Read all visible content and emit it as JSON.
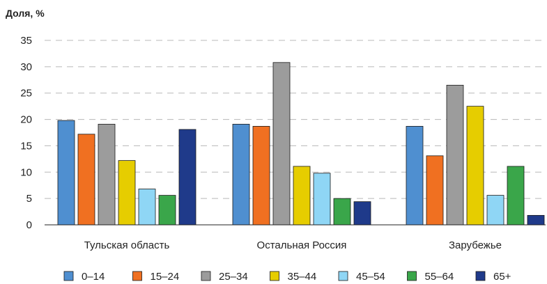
{
  "chart_data": {
    "type": "bar",
    "ylabel": "Доля, %",
    "xlabel": "",
    "ylim": [
      0,
      35
    ],
    "yticks": [
      0,
      5,
      10,
      15,
      20,
      25,
      30,
      35
    ],
    "grid": "dashed horizontal",
    "legend_position": "bottom",
    "categories": [
      "Тульская область",
      "Остальная Россия",
      "Зарубежье"
    ],
    "series": [
      {
        "name": "0–14",
        "color": "#4f8fd0",
        "values": [
          19.8,
          19.1,
          18.7
        ]
      },
      {
        "name": "15–24",
        "color": "#f07021",
        "values": [
          17.2,
          18.7,
          13.1
        ]
      },
      {
        "name": "25–34",
        "color": "#9c9c9c",
        "values": [
          19.1,
          30.8,
          26.5
        ]
      },
      {
        "name": "35–44",
        "color": "#e6cd00",
        "values": [
          12.2,
          11.1,
          22.5
        ]
      },
      {
        "name": "45–54",
        "color": "#8fd6f5",
        "values": [
          6.8,
          9.8,
          5.6
        ]
      },
      {
        "name": "55–64",
        "color": "#3aa64a",
        "values": [
          5.6,
          5.0,
          11.1
        ]
      },
      {
        "name": "65+",
        "color": "#1f3a8a",
        "values": [
          18.1,
          4.4,
          1.8
        ]
      }
    ]
  }
}
